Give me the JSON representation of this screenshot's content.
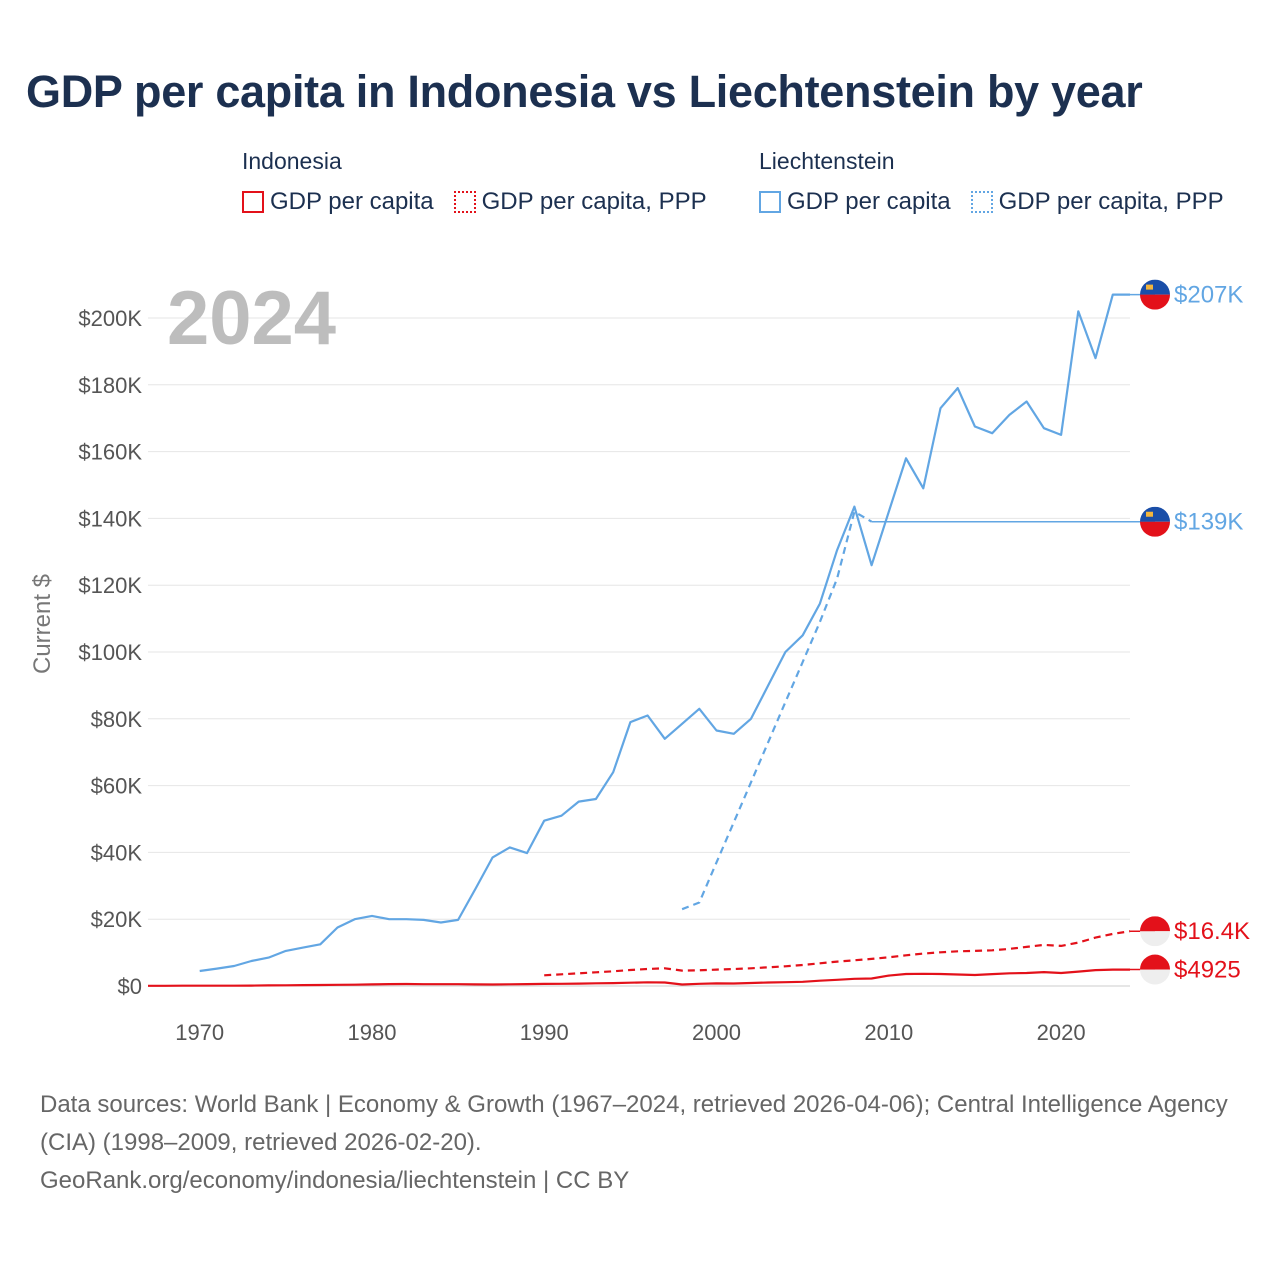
{
  "title": "GDP per capita in Indonesia vs Liechtenstein by year",
  "legend": {
    "groups": [
      {
        "name": "Indonesia",
        "items": [
          "GDP per capita",
          "GDP per capita, PPP"
        ],
        "color": "#e3111a"
      },
      {
        "name": "Liechtenstein",
        "items": [
          "GDP per capita",
          "GDP per capita, PPP"
        ],
        "color": "#62a6e3"
      }
    ]
  },
  "footer": {
    "line1": "Data sources: World Bank | Economy & Growth (1967–2024, retrieved 2026-04-06); Central Intelligence Agency (CIA) (1998–2009, retrieved 2026-02-20).",
    "line2": "GeoRank.org/economy/indonesia/liechtenstein | CC BY"
  },
  "chart_data": {
    "type": "line",
    "year_label": "2024",
    "ylabel": "Current $",
    "xlim": [
      1967,
      2024
    ],
    "ylim": [
      0,
      210000
    ],
    "xticks": [
      {
        "value": 1970,
        "label": "1970"
      },
      {
        "value": 1980,
        "label": "1980"
      },
      {
        "value": 1990,
        "label": "1990"
      },
      {
        "value": 2000,
        "label": "2000"
      },
      {
        "value": 2010,
        "label": "2010"
      },
      {
        "value": 2020,
        "label": "2020"
      }
    ],
    "yticks": [
      {
        "value": 0,
        "label": "$0"
      },
      {
        "value": 20000,
        "label": "$20K"
      },
      {
        "value": 40000,
        "label": "$40K"
      },
      {
        "value": 60000,
        "label": "$60K"
      },
      {
        "value": 80000,
        "label": "$80K"
      },
      {
        "value": 100000,
        "label": "$100K"
      },
      {
        "value": 120000,
        "label": "$120K"
      },
      {
        "value": 140000,
        "label": "$140K"
      },
      {
        "value": 160000,
        "label": "$160K"
      },
      {
        "value": 180000,
        "label": "$180K"
      },
      {
        "value": 200000,
        "label": "$200K"
      }
    ],
    "series": [
      {
        "name": "Liechtenstein GDP per capita",
        "country": "liechtenstein",
        "color": "#62a6e3",
        "dashed": false,
        "end_label": "$207K",
        "end_value": 207000,
        "x": [
          1970,
          1971,
          1972,
          1973,
          1974,
          1975,
          1976,
          1977,
          1978,
          1979,
          1980,
          1981,
          1982,
          1983,
          1984,
          1985,
          1986,
          1987,
          1988,
          1989,
          1990,
          1991,
          1992,
          1993,
          1994,
          1995,
          1996,
          1997,
          1998,
          1999,
          2000,
          2001,
          2002,
          2003,
          2004,
          2005,
          2006,
          2007,
          2008,
          2009,
          2010,
          2011,
          2012,
          2013,
          2014,
          2015,
          2016,
          2017,
          2018,
          2019,
          2020,
          2021,
          2022,
          2023,
          2024
        ],
        "y": [
          4500,
          5200,
          6000,
          7500,
          8500,
          10500,
          11500,
          12500,
          17500,
          20000,
          21000,
          20000,
          20000,
          19800,
          19000,
          19800,
          29000,
          38500,
          41500,
          39800,
          49500,
          51000,
          55200,
          56000,
          64000,
          79000,
          81000,
          74000,
          78500,
          83000,
          76500,
          75500,
          80000,
          90000,
          100000,
          105000,
          114500,
          130500,
          143500,
          126000,
          142000,
          158000,
          149000,
          173000,
          179000,
          167500,
          165500,
          171000,
          175000,
          167000,
          165000,
          202000,
          188000,
          207000,
          207000
        ]
      },
      {
        "name": "Liechtenstein GDP per capita, PPP",
        "country": "liechtenstein",
        "color": "#62a6e3",
        "dashed": true,
        "end_label": "$139K",
        "end_value": 139000,
        "x": [
          1998,
          1999,
          2000,
          2001,
          2002,
          2003,
          2004,
          2005,
          2006,
          2007,
          2008,
          2009
        ],
        "y": [
          23000,
          25000,
          37000,
          49000,
          61000,
          73000,
          85000,
          97000,
          109000,
          122000,
          142000,
          139000
        ]
      },
      {
        "name": "Indonesia GDP per capita, PPP",
        "country": "indonesia",
        "color": "#e3111a",
        "dashed": true,
        "end_label": "$16.4K",
        "end_value": 16400,
        "x": [
          1990,
          1991,
          1992,
          1993,
          1994,
          1995,
          1996,
          1997,
          1998,
          1999,
          2000,
          2001,
          2002,
          2003,
          2004,
          2005,
          2006,
          2007,
          2008,
          2009,
          2010,
          2011,
          2012,
          2013,
          2014,
          2015,
          2016,
          2017,
          2018,
          2019,
          2020,
          2021,
          2022,
          2023,
          2024
        ],
        "y": [
          3200,
          3500,
          3800,
          4100,
          4400,
          4800,
          5100,
          5300,
          4600,
          4700,
          4900,
          5100,
          5300,
          5600,
          5900,
          6300,
          6800,
          7300,
          7700,
          8100,
          8600,
          9200,
          9700,
          10100,
          10400,
          10500,
          10700,
          11100,
          11700,
          12300,
          12000,
          13000,
          14500,
          15600,
          16400
        ]
      },
      {
        "name": "Indonesia GDP per capita",
        "country": "indonesia",
        "color": "#e3111a",
        "dashed": false,
        "end_label": "$4925",
        "end_value": 4925,
        "x": [
          1967,
          1968,
          1969,
          1970,
          1971,
          1972,
          1973,
          1974,
          1975,
          1976,
          1977,
          1978,
          1979,
          1980,
          1981,
          1982,
          1983,
          1984,
          1985,
          1986,
          1987,
          1988,
          1989,
          1990,
          1991,
          1992,
          1993,
          1994,
          1995,
          1996,
          1997,
          1998,
          1999,
          2000,
          2001,
          2002,
          2003,
          2004,
          2005,
          2006,
          2007,
          2008,
          2009,
          2010,
          2011,
          2012,
          2013,
          2014,
          2015,
          2016,
          2017,
          2018,
          2019,
          2020,
          2021,
          2022,
          2023,
          2024
        ],
        "y": [
          55,
          65,
          75,
          80,
          85,
          95,
          130,
          190,
          220,
          260,
          310,
          370,
          400,
          490,
          580,
          590,
          540,
          550,
          530,
          480,
          460,
          520,
          580,
          620,
          670,
          720,
          800,
          860,
          1000,
          1100,
          1050,
          460,
          660,
          770,
          750,
          900,
          1050,
          1150,
          1250,
          1580,
          1850,
          2150,
          2250,
          3100,
          3600,
          3650,
          3600,
          3450,
          3300,
          3550,
          3800,
          3900,
          4150,
          3900,
          4300,
          4750,
          4900,
          4925
        ]
      }
    ]
  }
}
